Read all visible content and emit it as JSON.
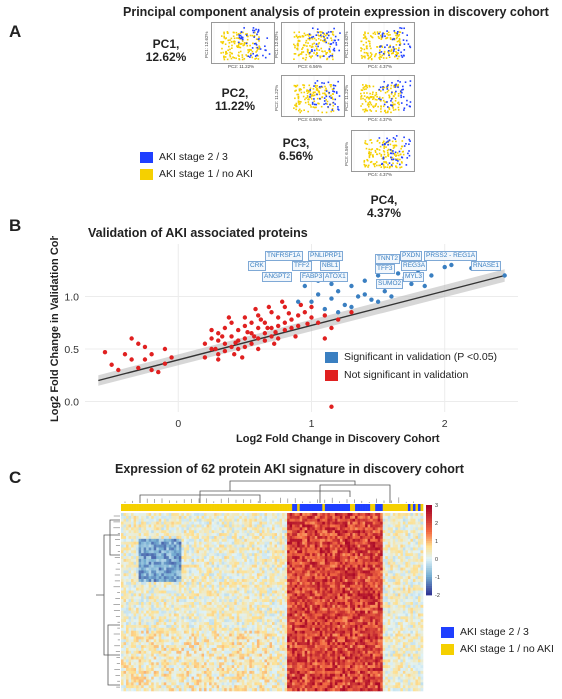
{
  "panels": {
    "a": {
      "letter": "A",
      "title": "Principal component analysis of protein expression in discovery cohort",
      "pcs": [
        {
          "name": "PC1,",
          "pct": "12.62%"
        },
        {
          "name": "PC2,",
          "pct": "11.22%"
        },
        {
          "name": "PC3,",
          "pct": "6.56%"
        },
        {
          "name": "PC4,",
          "pct": "4.37%"
        }
      ],
      "mini_plots": [
        {
          "xlab": "PC2: 11.22%",
          "ylab": "PC1: 12.62%"
        },
        {
          "xlab": "PC3: 6.56%",
          "ylab": "PC1: 12.62%"
        },
        {
          "xlab": "PC4: 4.37%",
          "ylab": "PC1: 12.62%"
        },
        {
          "xlab": "PC3: 6.56%",
          "ylab": "PC2: 11.22%"
        },
        {
          "xlab": "PC4: 4.37%",
          "ylab": "PC2: 11.22%"
        },
        {
          "xlab": "PC4: 4.37%",
          "ylab": "PC3: 6.56%"
        }
      ],
      "legend": [
        {
          "label": "AKI stage 2 / 3",
          "color": "#1f3fff"
        },
        {
          "label": "AKI stage 1 / no AKI",
          "color": "#f5d000"
        }
      ]
    },
    "b": {
      "letter": "B",
      "legend": [
        {
          "label": "Significant in validation (P <0.05)",
          "color": "#3a7fc1"
        },
        {
          "label": "Not significant in validation",
          "color": "#e02020"
        }
      ],
      "protein_labels": [
        "TNFRSF1A",
        "PNLIPRP1",
        "PXDN",
        "PRSS2 - REG1A",
        "CRK",
        "TFF2",
        "NBL1",
        "TNNT2",
        "REG3A",
        "RNASE1",
        "ANGPT2",
        "FABP3",
        "ATOX1",
        "TFF3",
        "MYL3",
        "SUMO2"
      ]
    },
    "c": {
      "letter": "C",
      "title": "Expression of 62 protein AKI signature in discovery cohort",
      "colorbar_ticks": [
        "3",
        "2",
        "1",
        "0",
        "-1",
        "-2"
      ],
      "legend": [
        {
          "label": "AKI stage 2 / 3",
          "color": "#1f3fff"
        },
        {
          "label": "AKI stage 1 / no AKI",
          "color": "#f5d000"
        }
      ]
    }
  },
  "chart_data": [
    {
      "type": "scatter",
      "title": "Principal component analysis of protein expression in discovery cohort",
      "series": [
        {
          "name": "AKI stage 2 / 3",
          "values": []
        },
        {
          "name": "AKI stage 1 / no AKI",
          "values": []
        }
      ]
    },
    {
      "type": "scatter",
      "title": "Validation of AKI associated proteins",
      "xlabel": "Log2 Fold Change in Discovery Cohort",
      "ylabel": "Log2 Fold Change in Validation Cohort",
      "xlim": [
        -0.7,
        2.55
      ],
      "ylim": [
        -0.1,
        1.5
      ],
      "x_ticks": [
        "0",
        "1",
        "2"
      ],
      "y_ticks": [
        "0.0",
        "0.5",
        "1.0"
      ],
      "trend": {
        "x0": -0.6,
        "y0": 0.2,
        "x1": 2.45,
        "y1": 1.2
      },
      "series": [
        {
          "name": "Significant in validation (P <0.05)",
          "color": "#3a7fc1",
          "points": [
            [
              0.95,
              1.1
            ],
            [
              1.05,
              1.15
            ],
            [
              1.1,
              1.2
            ],
            [
              1.2,
              1.05
            ],
            [
              1.3,
              1.1
            ],
            [
              1.4,
              1.15
            ],
            [
              1.5,
              1.2
            ],
            [
              1.55,
              1.05
            ],
            [
              1.6,
              1.1
            ],
            [
              1.7,
              1.18
            ],
            [
              1.75,
              1.12
            ],
            [
              1.8,
              1.25
            ],
            [
              1.9,
              1.2
            ],
            [
              2.0,
              1.28
            ],
            [
              2.05,
              1.3
            ],
            [
              2.2,
              1.27
            ],
            [
              2.45,
              1.2
            ],
            [
              1.0,
              0.95
            ],
            [
              1.15,
              0.98
            ],
            [
              1.25,
              0.92
            ],
            [
              1.35,
              1.0
            ],
            [
              1.45,
              0.97
            ],
            [
              1.2,
              0.85
            ],
            [
              1.1,
              0.88
            ],
            [
              1.3,
              0.9
            ],
            [
              1.4,
              1.02
            ],
            [
              1.6,
              1.0
            ],
            [
              1.5,
              0.95
            ],
            [
              1.05,
              1.02
            ],
            [
              0.9,
              0.95
            ],
            [
              1.65,
              1.22
            ],
            [
              1.85,
              1.1
            ],
            [
              1.15,
              1.12
            ]
          ]
        },
        {
          "name": "Not significant in validation",
          "color": "#e02020",
          "points": [
            [
              -0.55,
              0.47
            ],
            [
              -0.5,
              0.35
            ],
            [
              -0.45,
              0.3
            ],
            [
              -0.4,
              0.45
            ],
            [
              -0.35,
              0.4
            ],
            [
              -0.3,
              0.55
            ],
            [
              -0.3,
              0.32
            ],
            [
              -0.25,
              0.4
            ],
            [
              -0.2,
              0.45
            ],
            [
              -0.2,
              0.3
            ],
            [
              -0.15,
              0.28
            ],
            [
              -0.1,
              0.36
            ],
            [
              -0.1,
              0.5
            ],
            [
              -0.05,
              0.42
            ],
            [
              -0.35,
              0.6
            ],
            [
              -0.25,
              0.52
            ],
            [
              0.2,
              0.55
            ],
            [
              0.25,
              0.6
            ],
            [
              0.25,
              0.5
            ],
            [
              0.3,
              0.65
            ],
            [
              0.3,
              0.45
            ],
            [
              0.3,
              0.58
            ],
            [
              0.35,
              0.7
            ],
            [
              0.35,
              0.55
            ],
            [
              0.35,
              0.48
            ],
            [
              0.4,
              0.62
            ],
            [
              0.4,
              0.52
            ],
            [
              0.4,
              0.75
            ],
            [
              0.45,
              0.58
            ],
            [
              0.45,
              0.68
            ],
            [
              0.45,
              0.5
            ],
            [
              0.5,
              0.6
            ],
            [
              0.5,
              0.72
            ],
            [
              0.5,
              0.52
            ],
            [
              0.5,
              0.8
            ],
            [
              0.55,
              0.65
            ],
            [
              0.55,
              0.55
            ],
            [
              0.55,
              0.75
            ],
            [
              0.6,
              0.6
            ],
            [
              0.6,
              0.7
            ],
            [
              0.6,
              0.5
            ],
            [
              0.6,
              0.82
            ],
            [
              0.65,
              0.65
            ],
            [
              0.65,
              0.58
            ],
            [
              0.65,
              0.75
            ],
            [
              0.7,
              0.7
            ],
            [
              0.7,
              0.62
            ],
            [
              0.7,
              0.85
            ],
            [
              0.75,
              0.72
            ],
            [
              0.75,
              0.6
            ],
            [
              0.75,
              0.8
            ],
            [
              0.8,
              0.75
            ],
            [
              0.8,
              0.68
            ],
            [
              0.8,
              0.9
            ],
            [
              0.85,
              0.78
            ],
            [
              0.85,
              0.7
            ],
            [
              0.9,
              0.82
            ],
            [
              0.9,
              0.72
            ],
            [
              0.95,
              0.85
            ],
            [
              1.0,
              0.8
            ],
            [
              1.0,
              0.9
            ],
            [
              1.05,
              0.75
            ],
            [
              1.1,
              0.82
            ],
            [
              1.15,
              0.7
            ],
            [
              1.2,
              0.78
            ],
            [
              1.3,
              0.85
            ],
            [
              1.1,
              0.6
            ],
            [
              1.15,
              -0.05
            ],
            [
              0.3,
              0.4
            ],
            [
              0.2,
              0.42
            ],
            [
              0.25,
              0.68
            ],
            [
              0.42,
              0.45
            ],
            [
              0.58,
              0.88
            ],
            [
              0.68,
              0.9
            ],
            [
              0.38,
              0.8
            ],
            [
              0.48,
              0.42
            ],
            [
              0.52,
              0.66
            ],
            [
              0.62,
              0.78
            ],
            [
              0.72,
              0.55
            ],
            [
              0.78,
              0.95
            ],
            [
              0.88,
              0.62
            ],
            [
              0.92,
              0.92
            ],
            [
              0.28,
              0.5
            ],
            [
              0.33,
              0.62
            ],
            [
              0.43,
              0.56
            ],
            [
              0.57,
              0.62
            ],
            [
              0.67,
              0.7
            ],
            [
              0.73,
              0.66
            ],
            [
              0.83,
              0.84
            ],
            [
              0.97,
              0.74
            ]
          ]
        }
      ]
    },
    {
      "type": "heatmap",
      "title": "Expression of 62 protein AKI signature in discovery cohort",
      "colorbar_range": [
        -2,
        3
      ],
      "series": [
        {
          "name": "AKI stage 2 / 3",
          "color": "#1f3fff"
        },
        {
          "name": "AKI stage 1 / no AKI",
          "color": "#f5d000"
        }
      ]
    }
  ]
}
